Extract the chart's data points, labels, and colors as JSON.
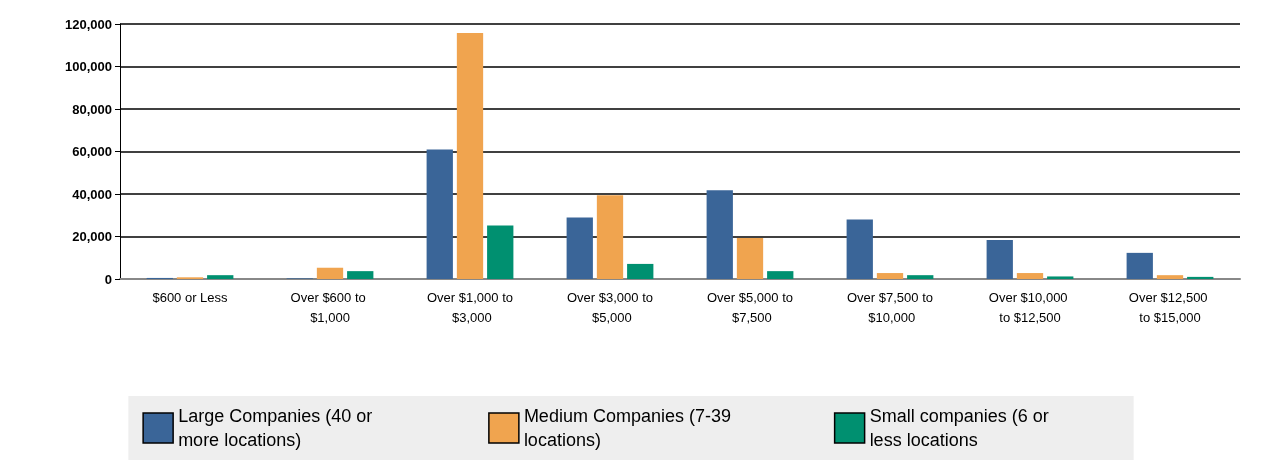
{
  "chart_data": {
    "type": "bar",
    "categories": [
      "$600 or Less",
      "Over $600 to $1,000",
      "Over $1,000 to $3,000",
      "Over $3,000 to $5,000",
      "Over $5,000 to $7,500",
      "Over $7,500 to $10,000",
      "Over $10,000 to $12,500",
      "Over $12,500 to $15,000"
    ],
    "series": [
      {
        "name": "Large Companies (40 or more locations)",
        "color": "#3a6598",
        "values": [
          500,
          300,
          61000,
          29000,
          41800,
          28000,
          18400,
          12300
        ]
      },
      {
        "name": "Medium Companies (7-39 locations)",
        "color": "#f0a44f",
        "values": [
          800,
          5300,
          115800,
          39400,
          19300,
          2800,
          2800,
          1800
        ]
      },
      {
        "name": "Small companies (6 or less locations",
        "color": "#009070",
        "values": [
          1800,
          3700,
          25200,
          7100,
          3700,
          1800,
          1200,
          1000
        ]
      }
    ],
    "ylim": [
      0,
      120000
    ],
    "yticks": [
      0,
      {
        "value": 20000,
        "label": "20,000"
      },
      {
        "value": 40000,
        "label": "40,000"
      },
      {
        "value": 60000,
        "label": "60,000"
      },
      {
        "value": 80000,
        "label": "80,000"
      },
      {
        "value": 100000,
        "label": "100,000"
      },
      {
        "value": 120000,
        "label": "120,000"
      }
    ],
    "grid": "y",
    "legend": "bottom"
  }
}
